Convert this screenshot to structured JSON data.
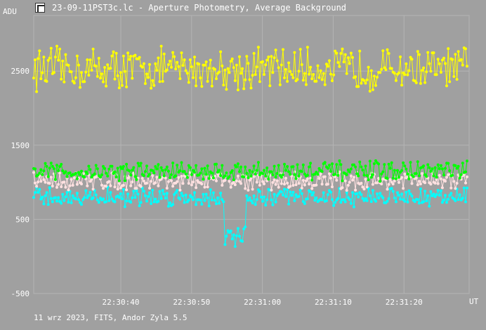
{
  "window": {
    "title": "23-09-11PST3c.lc - Aperture Photometry, Average Background"
  },
  "footer": {
    "text": "11 wrz 2023, FITS, Andor Zyla 5.5"
  },
  "colors": {
    "background": "#a0a0a0",
    "grid": "#b4b4b4",
    "text": "#ffffff"
  },
  "chart_data": {
    "type": "scatter",
    "title": "23-09-11PST3c.lc - Aperture Photometry, Average Background",
    "ylabel": "ADU",
    "xlabel": "UT",
    "grid": true,
    "xlim": [
      0,
      61.5
    ],
    "ylim": [
      -500,
      3250
    ],
    "x_ticks": [
      {
        "value": 12.3,
        "label": "22:30:40"
      },
      {
        "value": 22.3,
        "label": "22:30:50"
      },
      {
        "value": 32.3,
        "label": "22:31:00"
      },
      {
        "value": 42.3,
        "label": "22:31:10"
      },
      {
        "value": 52.3,
        "label": "22:31:20"
      }
    ],
    "y_ticks": [
      {
        "value": -500,
        "label": "-500"
      },
      {
        "value": 500,
        "label": "500"
      },
      {
        "value": 1500,
        "label": "1500"
      },
      {
        "value": 2500,
        "label": "2500"
      }
    ],
    "series": [
      {
        "color": "#ffff00",
        "base": 2530,
        "amp": 230,
        "values": []
      },
      {
        "color": "#00ff00",
        "base": 1150,
        "amp": 110,
        "values": []
      },
      {
        "color": "#ffe0e0",
        "base": 1020,
        "amp": 100,
        "values": []
      },
      {
        "color": "#00ffff",
        "base": 800,
        "amp": 100,
        "values": []
      }
    ]
  }
}
